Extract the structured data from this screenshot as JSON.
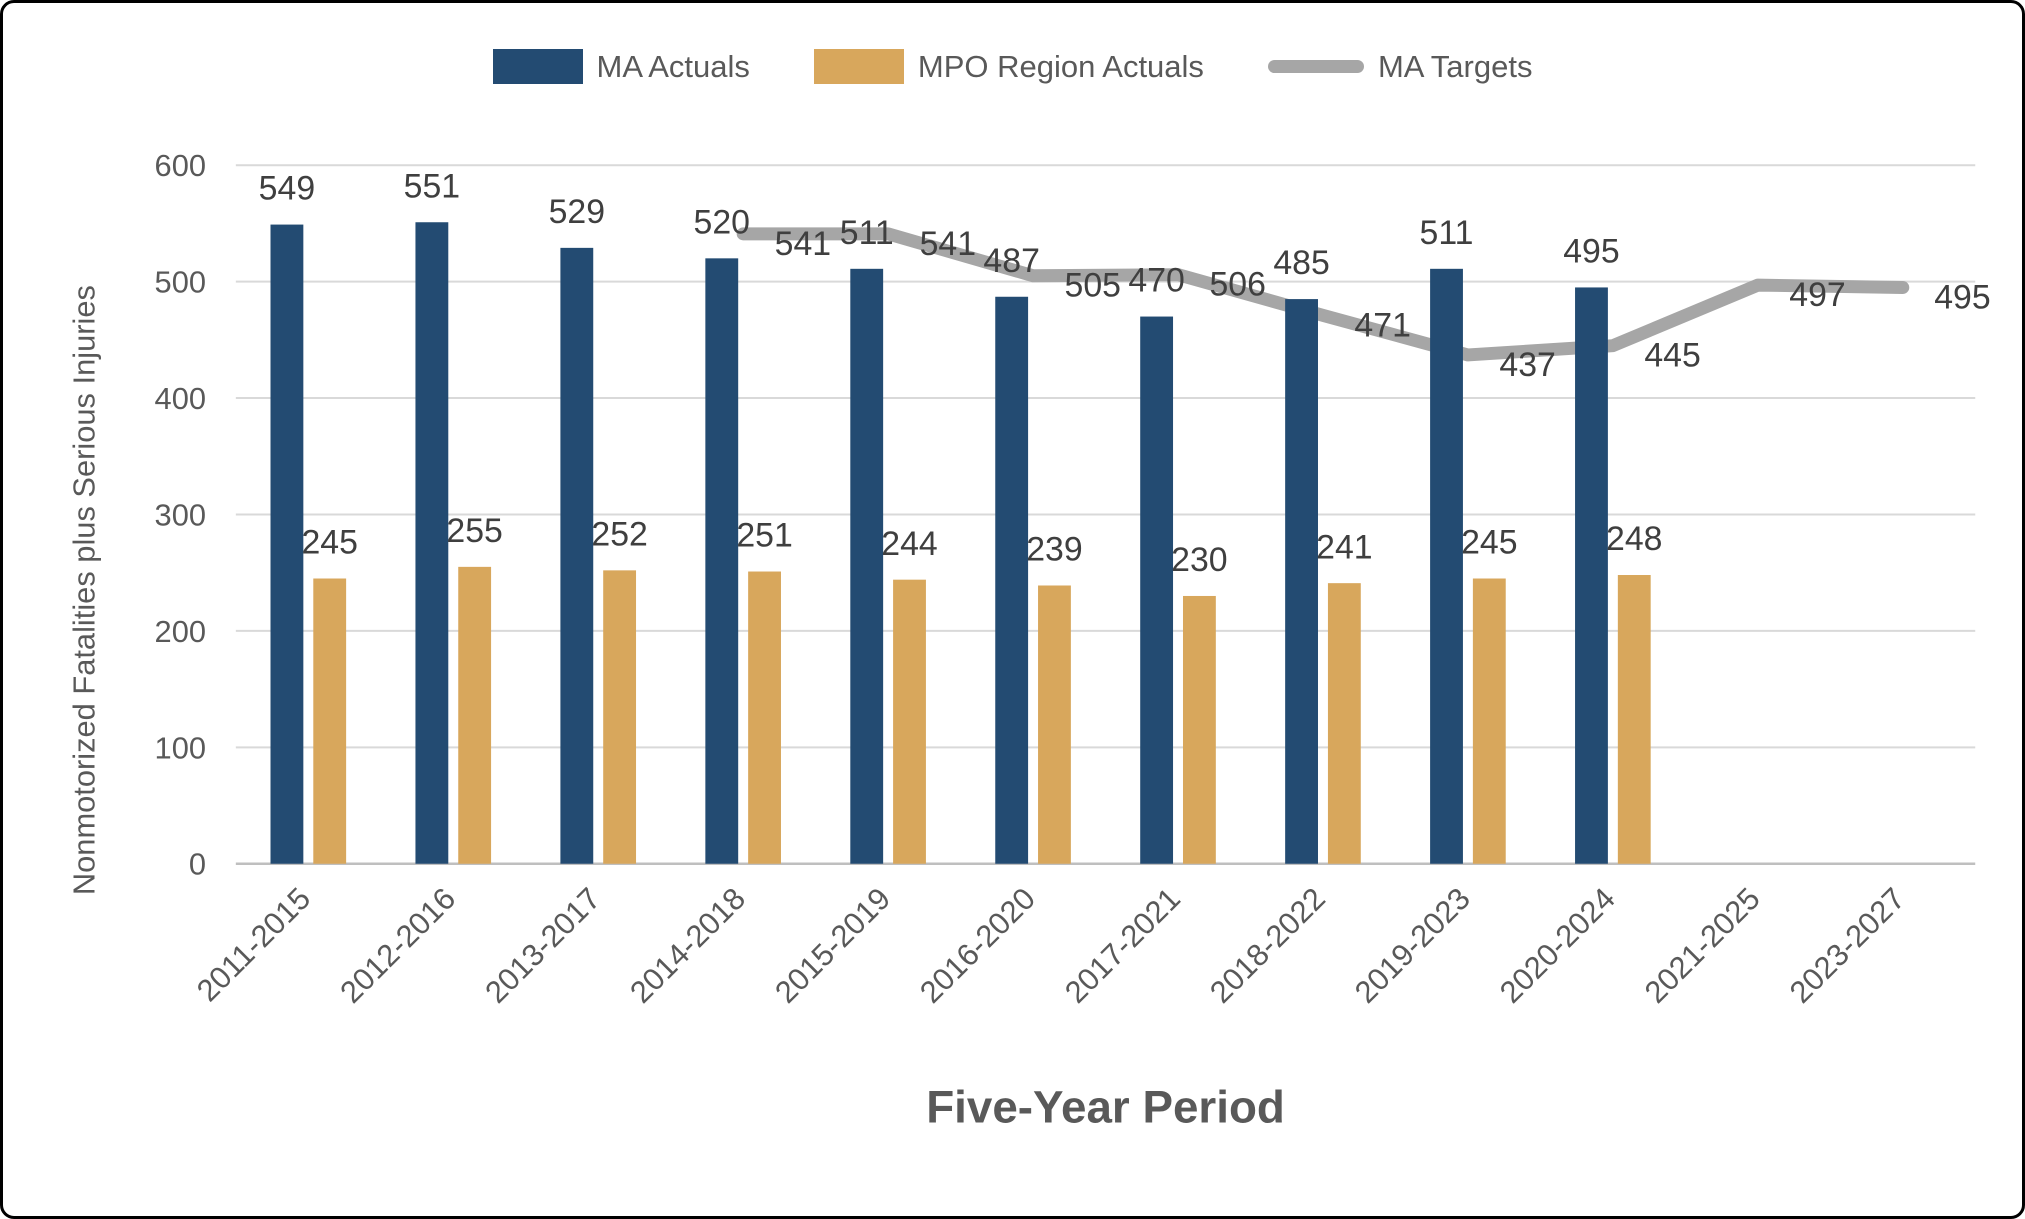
{
  "chart_data": {
    "type": "bar+line",
    "title": "",
    "categories": [
      "2011-2015",
      "2012-2016",
      "2013-2017",
      "2014-2018",
      "2015-2019",
      "2016-2020",
      "2017-2021",
      "2018-2022",
      "2019-2023",
      "2020-2024",
      "2021-2025",
      "2023-2027"
    ],
    "series": [
      {
        "name": "MA Actuals",
        "type": "bar",
        "color": "#234B72",
        "values": [
          549,
          551,
          529,
          520,
          511,
          487,
          470,
          485,
          511,
          495,
          null,
          null
        ]
      },
      {
        "name": "MPO Region Actuals",
        "type": "bar",
        "color": "#D8A75C",
        "values": [
          245,
          255,
          252,
          251,
          244,
          239,
          230,
          241,
          245,
          248,
          null,
          null
        ]
      },
      {
        "name": "MA Targets",
        "type": "line",
        "color": "#A6A6A6",
        "values": [
          null,
          null,
          null,
          541,
          541,
          505,
          506,
          471,
          437,
          445,
          497,
          495
        ]
      }
    ],
    "xlabel": "Five-Year Period",
    "ylabel": "Nonmotorized Fatalities plus Serious Injuries",
    "ylim": [
      0,
      600
    ],
    "yticks": [
      0,
      100,
      200,
      300,
      400,
      500,
      600
    ],
    "grid": true,
    "legend_position": "top",
    "data_labels": true
  },
  "colors": {
    "axis_text": "#595959",
    "data_label": "#3F3F3F",
    "gridline": "#D9D9D9",
    "axis_line": "#BFBFBF",
    "background": "#FFFFFF",
    "border": "#000000"
  }
}
